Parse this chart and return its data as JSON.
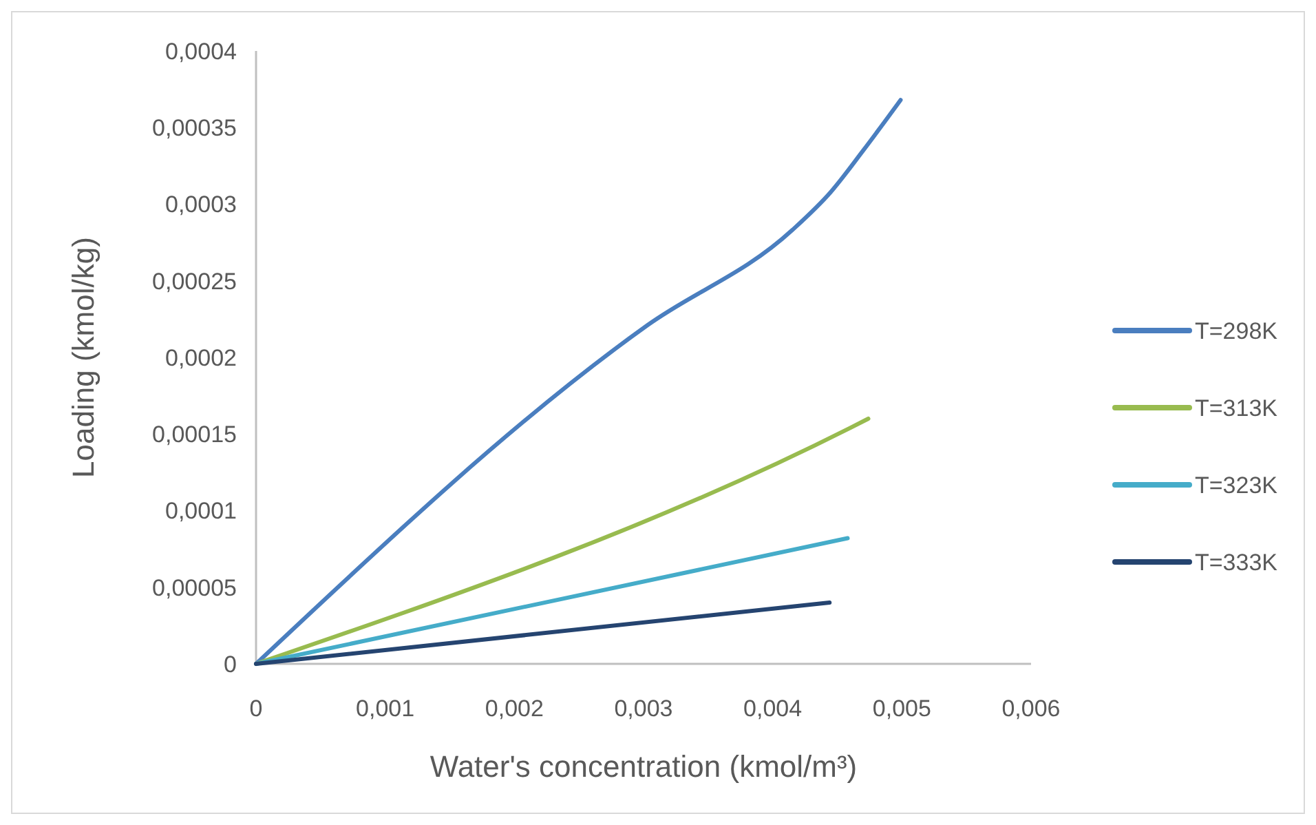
{
  "chart_data": {
    "type": "line",
    "xlabel": "Water's concentration (kmol/m³)",
    "ylabel": "Loading (kmol/kg)",
    "xlim": [
      0,
      0.006
    ],
    "ylim": [
      0,
      0.0004
    ],
    "xticks": [
      0,
      {
        "value": 0.001,
        "label": "0,001"
      },
      {
        "value": 0.002,
        "label": "0,002"
      },
      {
        "value": 0.003,
        "label": "0,003"
      },
      {
        "value": 0.004,
        "label": "0,004"
      },
      {
        "value": 0.005,
        "label": "0,005"
      },
      {
        "value": 0.006,
        "label": "0,006"
      }
    ],
    "yticks": [
      0,
      {
        "value": 5e-05,
        "label": "0,00005"
      },
      {
        "value": 0.0001,
        "label": "0,0001"
      },
      {
        "value": 0.00015,
        "label": "0,00015"
      },
      {
        "value": 0.0002,
        "label": "0,0002"
      },
      {
        "value": 0.00025,
        "label": "0,00025"
      },
      {
        "value": 0.0003,
        "label": "0,0003"
      },
      {
        "value": 0.00035,
        "label": "0,00035"
      },
      {
        "value": 0.0004,
        "label": "0,0004"
      }
    ],
    "grid": false,
    "legend": "right",
    "marker": "none",
    "line_style": "solid",
    "series": [
      {
        "name": "T=298K",
        "color": "#4a7ebf",
        "x": [
          0,
          0.00303,
          0.00415,
          0.00445,
          0.0047,
          0.00499
        ],
        "values": [
          0,
          0.000221,
          0.000283,
          0.000308,
          0.000335,
          0.000368
        ]
      },
      {
        "name": "T=313K",
        "color": "#98bb4f",
        "x": [
          0,
          0.0046,
          0.00474
        ],
        "values": [
          0,
          0.000154,
          0.00016
        ]
      },
      {
        "name": "T=323K",
        "color": "#45acc9",
        "x": [
          0,
          0.00458
        ],
        "values": [
          0,
          8.2e-05
        ]
      },
      {
        "name": "T=333K",
        "color": "#254470",
        "x": [
          0,
          0.00444
        ],
        "values": [
          0,
          4e-05
        ]
      }
    ]
  }
}
